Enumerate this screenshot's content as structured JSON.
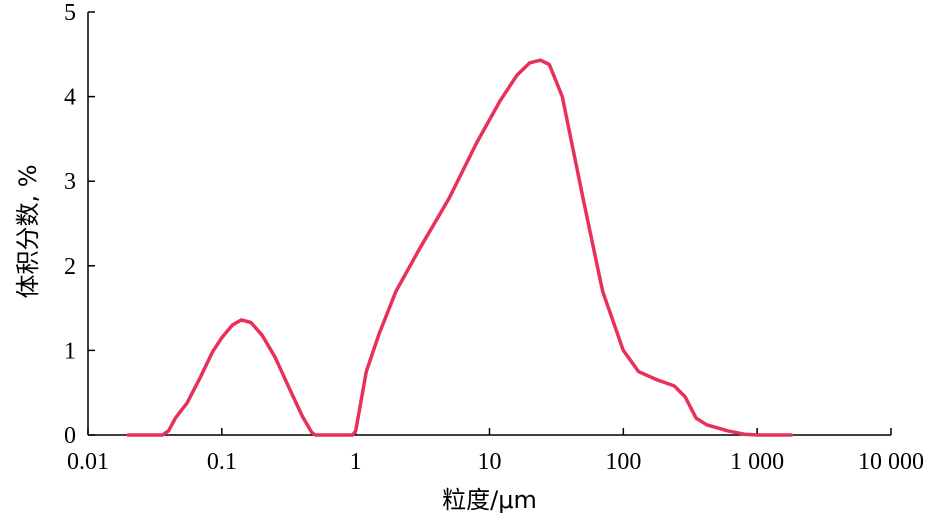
{
  "chart_data": {
    "type": "line",
    "xlabel": "粒度/μm",
    "ylabel": "体积分数, %",
    "xscale": "log",
    "xlim": [
      0.01,
      10000
    ],
    "ylim": [
      0,
      5
    ],
    "x_ticks": [
      0.01,
      0.1,
      1,
      10,
      100,
      1000,
      10000
    ],
    "x_tick_labels": [
      "0.01",
      "0.1",
      "1",
      "10",
      "100",
      "1 000",
      "10 000"
    ],
    "y_ticks": [
      0,
      1,
      2,
      3,
      4,
      5
    ],
    "y_tick_labels": [
      "0",
      "1",
      "2",
      "3",
      "4",
      "5"
    ],
    "grid": false,
    "line_color": "#e8305a",
    "series": [
      {
        "points": [
          [
            0.02,
            0.0
          ],
          [
            0.036,
            0.0
          ],
          [
            0.04,
            0.05
          ],
          [
            0.045,
            0.2
          ],
          [
            0.055,
            0.38
          ],
          [
            0.07,
            0.7
          ],
          [
            0.085,
            0.98
          ],
          [
            0.1,
            1.15
          ],
          [
            0.12,
            1.3
          ],
          [
            0.14,
            1.36
          ],
          [
            0.165,
            1.33
          ],
          [
            0.2,
            1.18
          ],
          [
            0.25,
            0.92
          ],
          [
            0.32,
            0.55
          ],
          [
            0.4,
            0.22
          ],
          [
            0.47,
            0.03
          ],
          [
            0.5,
            0.0
          ],
          [
            0.95,
            0.0
          ],
          [
            1.0,
            0.05
          ],
          [
            1.2,
            0.75
          ],
          [
            1.5,
            1.2
          ],
          [
            2.0,
            1.7
          ],
          [
            3.0,
            2.2
          ],
          [
            5.0,
            2.8
          ],
          [
            8.0,
            3.45
          ],
          [
            12.0,
            3.95
          ],
          [
            16.0,
            4.25
          ],
          [
            20.0,
            4.4
          ],
          [
            24.0,
            4.43
          ],
          [
            28.0,
            4.38
          ],
          [
            35.0,
            4.0
          ],
          [
            50.0,
            2.8
          ],
          [
            70.0,
            1.7
          ],
          [
            100.0,
            1.0
          ],
          [
            130.0,
            0.75
          ],
          [
            180.0,
            0.65
          ],
          [
            240.0,
            0.58
          ],
          [
            290.0,
            0.45
          ],
          [
            350.0,
            0.2
          ],
          [
            420.0,
            0.12
          ],
          [
            600.0,
            0.05
          ],
          [
            800.0,
            0.01
          ],
          [
            1000.0,
            0.0
          ],
          [
            1800.0,
            0.0
          ]
        ]
      }
    ]
  }
}
